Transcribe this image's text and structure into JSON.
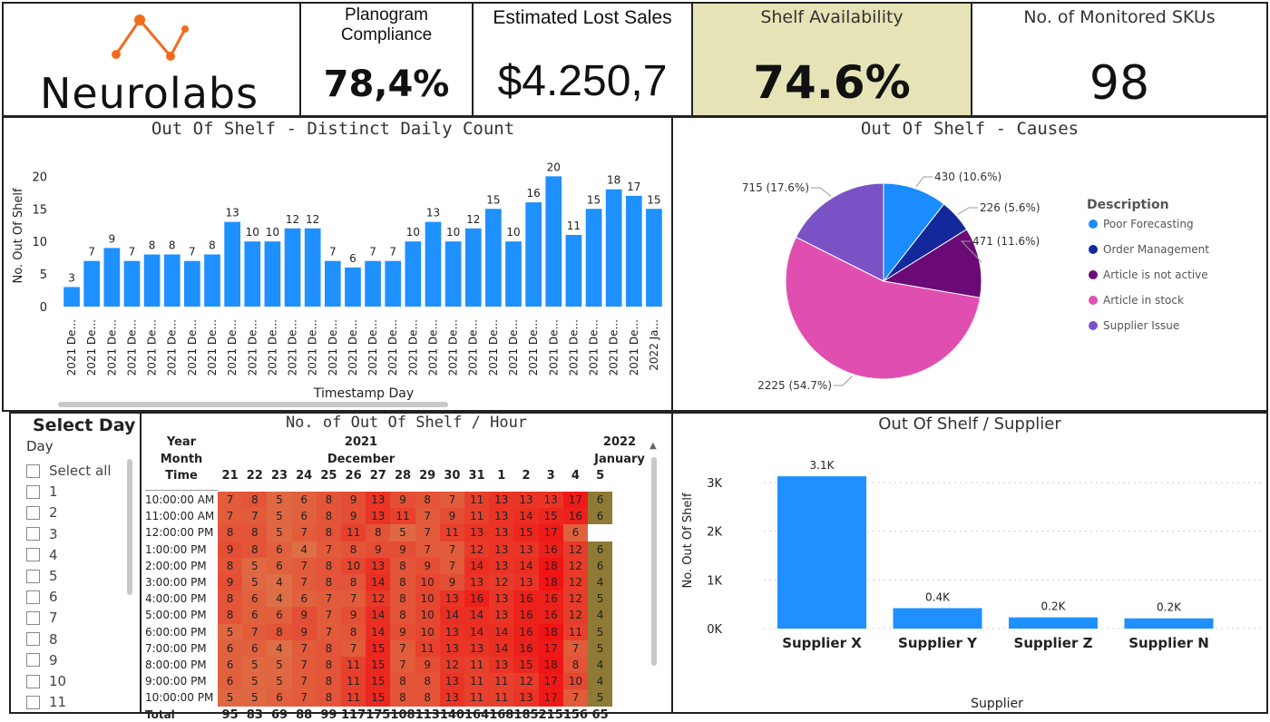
{
  "brand": {
    "name": "Neurolabs"
  },
  "kpis": [
    {
      "title": "Planogram Compliance",
      "value": "78,4%"
    },
    {
      "title": "Estimated Lost Sales",
      "value": "$4.250,7"
    },
    {
      "title": "Shelf Availability",
      "value": "74.6%"
    },
    {
      "title": "No. of Monitored SKUs",
      "value": "98"
    }
  ],
  "colors": {
    "accent": "#1a8cff",
    "highlight_kpi_bg": "#e6e3b6",
    "bar": "#1e90ff",
    "pie_poor": "#1a8cff",
    "pie_order": "#13299b",
    "pie_article_inactive": "#6b0a76",
    "pie_article_stock": "#e04fb0",
    "pie_supplier": "#7b52c6"
  },
  "chart_data": [
    {
      "type": "bar",
      "title": "Out Of Shelf - Distinct Daily Count",
      "xlabel": "Timestamp Day",
      "ylabel": "No. Out Of Shelf",
      "ylim": [
        0,
        22
      ],
      "yticks": [
        "0",
        "5",
        "10",
        "15",
        "20"
      ],
      "categories": [
        "2021 De...",
        "2021 De...",
        "2021 De...",
        "2021 De...",
        "2021 De...",
        "2021 De...",
        "2021 De...",
        "2021 De...",
        "2021 De...",
        "2021 De...",
        "2021 De...",
        "2021 De...",
        "2021 De...",
        "2021 De...",
        "2021 De...",
        "2021 De...",
        "2021 De...",
        "2021 De...",
        "2021 De...",
        "2021 De...",
        "2021 De...",
        "2021 De...",
        "2021 De...",
        "2021 De...",
        "2021 De...",
        "2021 De...",
        "2021 De...",
        "2021 De...",
        "2021 De...",
        "2022 Ja..."
      ],
      "values": [
        3,
        7,
        9,
        7,
        8,
        8,
        7,
        8,
        13,
        10,
        10,
        12,
        12,
        7,
        6,
        7,
        7,
        10,
        13,
        10,
        12,
        15,
        10,
        16,
        20,
        11,
        15,
        18,
        17,
        15
      ],
      "labels": [
        "3",
        "7",
        "9",
        "7",
        "8",
        "8",
        "7",
        "8",
        "13",
        "10",
        "10",
        "12",
        "12",
        "7",
        "6",
        "7",
        "7",
        "10",
        "13",
        "10",
        "12",
        "15",
        "10",
        "16",
        "20",
        "11",
        "15",
        "18",
        "17",
        "15"
      ]
    },
    {
      "type": "pie",
      "title": "Out Of Shelf - Causes",
      "legend_title": "Description",
      "slices": [
        {
          "name": "Poor Forecasting",
          "value": 430,
          "label": "430 (10.6%)"
        },
        {
          "name": "Order Management",
          "value": 226,
          "label": "226 (5.6%)"
        },
        {
          "name": "Article is not active",
          "value": 471,
          "label": "471 (11.6%)"
        },
        {
          "name": "Article in stock",
          "value": 2225,
          "label": "2225 (54.7%)"
        },
        {
          "name": "Supplier Issue",
          "value": 715,
          "label": "715 (17.6%)"
        }
      ]
    },
    {
      "type": "heatmap",
      "title": "No. of Out Of Shelf / Hour",
      "row_header": [
        "Year",
        "Month",
        "Time"
      ],
      "year_labels": [
        "2021",
        "2022"
      ],
      "month_labels": [
        "December",
        "January"
      ],
      "columns": [
        "21",
        "22",
        "23",
        "24",
        "25",
        "26",
        "27",
        "28",
        "29",
        "30",
        "31",
        "1",
        "2",
        "3",
        "4",
        "5"
      ],
      "rows": [
        {
          "time": "10:00:00 AM",
          "values": [
            7,
            8,
            5,
            6,
            8,
            9,
            13,
            9,
            8,
            7,
            11,
            13,
            13,
            13,
            17,
            6
          ]
        },
        {
          "time": "11:00:00 AM",
          "values": [
            7,
            7,
            5,
            6,
            8,
            9,
            13,
            11,
            7,
            9,
            11,
            13,
            14,
            15,
            16,
            6
          ]
        },
        {
          "time": "12:00:00 PM",
          "values": [
            8,
            8,
            5,
            7,
            8,
            11,
            8,
            5,
            7,
            11,
            13,
            13,
            15,
            17,
            6,
            null
          ]
        },
        {
          "time": "1:00:00 PM",
          "values": [
            9,
            8,
            6,
            4,
            7,
            8,
            9,
            9,
            7,
            7,
            12,
            13,
            13,
            16,
            12,
            6
          ]
        },
        {
          "time": "2:00:00 PM",
          "values": [
            8,
            5,
            6,
            7,
            8,
            10,
            13,
            8,
            9,
            7,
            14,
            13,
            14,
            18,
            12,
            6
          ]
        },
        {
          "time": "3:00:00 PM",
          "values": [
            9,
            5,
            4,
            7,
            8,
            8,
            14,
            8,
            10,
            9,
            13,
            12,
            13,
            18,
            12,
            4
          ]
        },
        {
          "time": "4:00:00 PM",
          "values": [
            8,
            6,
            4,
            6,
            7,
            7,
            12,
            8,
            10,
            13,
            16,
            13,
            16,
            16,
            12,
            5
          ]
        },
        {
          "time": "5:00:00 PM",
          "values": [
            8,
            6,
            6,
            9,
            7,
            9,
            14,
            8,
            10,
            14,
            14,
            13,
            16,
            16,
            12,
            4
          ]
        },
        {
          "time": "6:00:00 PM",
          "values": [
            5,
            7,
            8,
            9,
            7,
            8,
            14,
            9,
            10,
            13,
            14,
            14,
            16,
            18,
            11,
            5
          ]
        },
        {
          "time": "7:00:00 PM",
          "values": [
            6,
            6,
            4,
            7,
            8,
            7,
            15,
            7,
            11,
            13,
            13,
            14,
            16,
            17,
            7,
            5
          ]
        },
        {
          "time": "8:00:00 PM",
          "values": [
            6,
            5,
            5,
            7,
            8,
            11,
            15,
            7,
            9,
            12,
            11,
            13,
            15,
            18,
            8,
            4
          ]
        },
        {
          "time": "9:00:00 PM",
          "values": [
            6,
            5,
            5,
            7,
            8,
            11,
            15,
            8,
            8,
            13,
            11,
            11,
            12,
            17,
            10,
            4
          ]
        },
        {
          "time": "10:00:00 PM",
          "values": [
            5,
            5,
            6,
            7,
            8,
            11,
            15,
            8,
            8,
            13,
            11,
            11,
            13,
            17,
            7,
            5
          ]
        }
      ],
      "total_label": "Total",
      "totals": [
        "95",
        "83",
        "69",
        "88",
        "99",
        "117",
        "175",
        "108",
        "113",
        "140",
        "164",
        "168",
        "185",
        "215",
        "156",
        "65"
      ]
    },
    {
      "type": "bar",
      "title": "Out Of Shelf / Supplier",
      "xlabel": "Supplier",
      "ylabel": "No. Out Of Shelf",
      "ylim": [
        0,
        3300
      ],
      "yticks": [
        "0K",
        "1K",
        "2K",
        "3K"
      ],
      "categories": [
        "Supplier X",
        "Supplier Y",
        "Supplier Z",
        "Supplier N"
      ],
      "values": [
        3130,
        420,
        230,
        210
      ],
      "labels": [
        "3.1K",
        "0.4K",
        "0.2K",
        "0.2K"
      ]
    }
  ],
  "slicer": {
    "title": "Select Day",
    "subtitle": "Day",
    "items": [
      "Select all",
      "1",
      "2",
      "3",
      "4",
      "5",
      "6",
      "7",
      "8",
      "9",
      "10",
      "11"
    ]
  }
}
